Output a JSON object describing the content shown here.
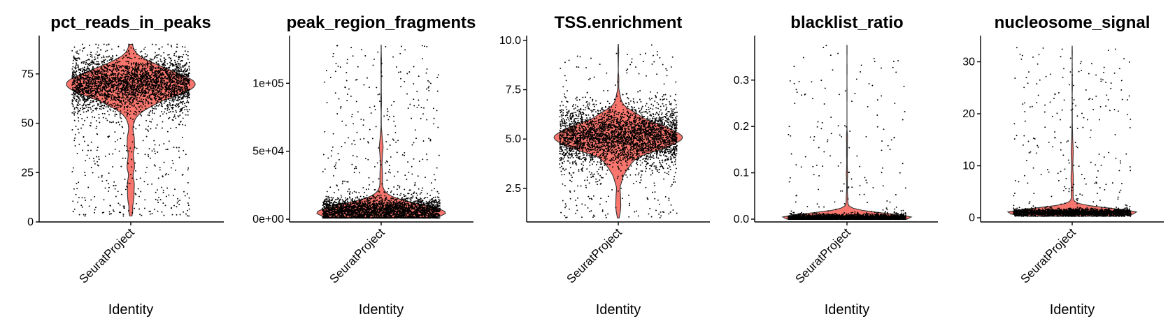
{
  "chart_data": [
    {
      "type": "violin",
      "title": "pct_reads_in_peaks",
      "xlabel": "Identity",
      "ylabel": "",
      "categories": [
        "SeuratProject"
      ],
      "ylim": [
        0,
        93
      ],
      "yticks": [
        0,
        25,
        50,
        75
      ],
      "ytick_labels": [
        "0",
        "25",
        "50",
        "75"
      ],
      "fill_color": "#F8766D",
      "point_color": "#000000",
      "distribution": {
        "median": 70,
        "q1": 63,
        "q3": 75,
        "min": 3,
        "max": 90,
        "mode": 70,
        "density_peak_width": 1.0
      },
      "points": {
        "n": 3600,
        "jitter_width": 0.42,
        "center": 70,
        "spread": 7,
        "tail_fraction": 0.12,
        "low": 3,
        "high": 90
      }
    },
    {
      "type": "violin",
      "title": "peak_region_fragments",
      "xlabel": "Identity",
      "ylabel": "",
      "categories": [
        "SeuratProject"
      ],
      "ylim": [
        -2000,
        133000
      ],
      "yticks": [
        0,
        50000,
        100000
      ],
      "ytick_labels": [
        "0e+00",
        "5e+04",
        "1e+05"
      ],
      "fill_color": "#F8766D",
      "point_color": "#000000",
      "distribution": {
        "median": 6000,
        "q1": 3000,
        "q3": 12000,
        "min": 1000,
        "max": 128000,
        "mode": 5000,
        "density_peak_width": 1.0
      },
      "points": {
        "n": 3400,
        "jitter_width": 0.42,
        "center": 6000,
        "spread": 5000,
        "tail_fraction": 0.1,
        "low": 1000,
        "high": 128000
      }
    },
    {
      "type": "violin",
      "title": "TSS.enrichment",
      "xlabel": "Identity",
      "ylabel": "",
      "categories": [
        "SeuratProject"
      ],
      "ylim": [
        0.8,
        10.1
      ],
      "yticks": [
        2.5,
        5.0,
        7.5,
        10.0
      ],
      "ytick_labels": [
        "2.5",
        "5.0",
        "7.5",
        "10.0"
      ],
      "fill_color": "#F8766D",
      "point_color": "#000000",
      "distribution": {
        "median": 5.1,
        "q1": 4.5,
        "q3": 5.8,
        "min": 1.0,
        "max": 9.8,
        "mode": 5.2,
        "density_peak_width": 1.0
      },
      "points": {
        "n": 3600,
        "jitter_width": 0.42,
        "center": 5.1,
        "spread": 0.75,
        "tail_fraction": 0.08,
        "low": 1.0,
        "high": 9.8
      }
    },
    {
      "type": "violin",
      "title": "blacklist_ratio",
      "xlabel": "Identity",
      "ylabel": "",
      "categories": [
        "SeuratProject"
      ],
      "ylim": [
        -0.006,
        0.39
      ],
      "yticks": [
        0.0,
        0.1,
        0.2,
        0.3
      ],
      "ytick_labels": [
        "0.0",
        "0.1",
        "0.2",
        "0.3"
      ],
      "fill_color": "#F8766D",
      "point_color": "#000000",
      "distribution": {
        "median": 0.002,
        "q1": 0.0005,
        "q3": 0.004,
        "min": 0.0,
        "max": 0.375,
        "mode": 0.001,
        "density_peak_width": 1.0
      },
      "points": {
        "n": 2600,
        "jitter_width": 0.42,
        "center": 0.003,
        "spread": 0.004,
        "tail_fraction": 0.06,
        "low": 0.0,
        "high": 0.375
      }
    },
    {
      "type": "violin",
      "title": "nucleosome_signal",
      "xlabel": "Identity",
      "ylabel": "",
      "categories": [
        "SeuratProject"
      ],
      "ylim": [
        -0.8,
        34.5
      ],
      "yticks": [
        0,
        10,
        20,
        30
      ],
      "ytick_labels": [
        "0",
        "10",
        "20",
        "30"
      ],
      "fill_color": "#F8766D",
      "point_color": "#000000",
      "distribution": {
        "median": 1.0,
        "q1": 0.8,
        "q3": 1.3,
        "min": 0.3,
        "max": 33,
        "mode": 1.0,
        "density_peak_width": 1.0
      },
      "points": {
        "n": 2600,
        "jitter_width": 0.42,
        "center": 1.0,
        "spread": 0.35,
        "tail_fraction": 0.1,
        "low": 0.3,
        "high": 33
      }
    }
  ]
}
